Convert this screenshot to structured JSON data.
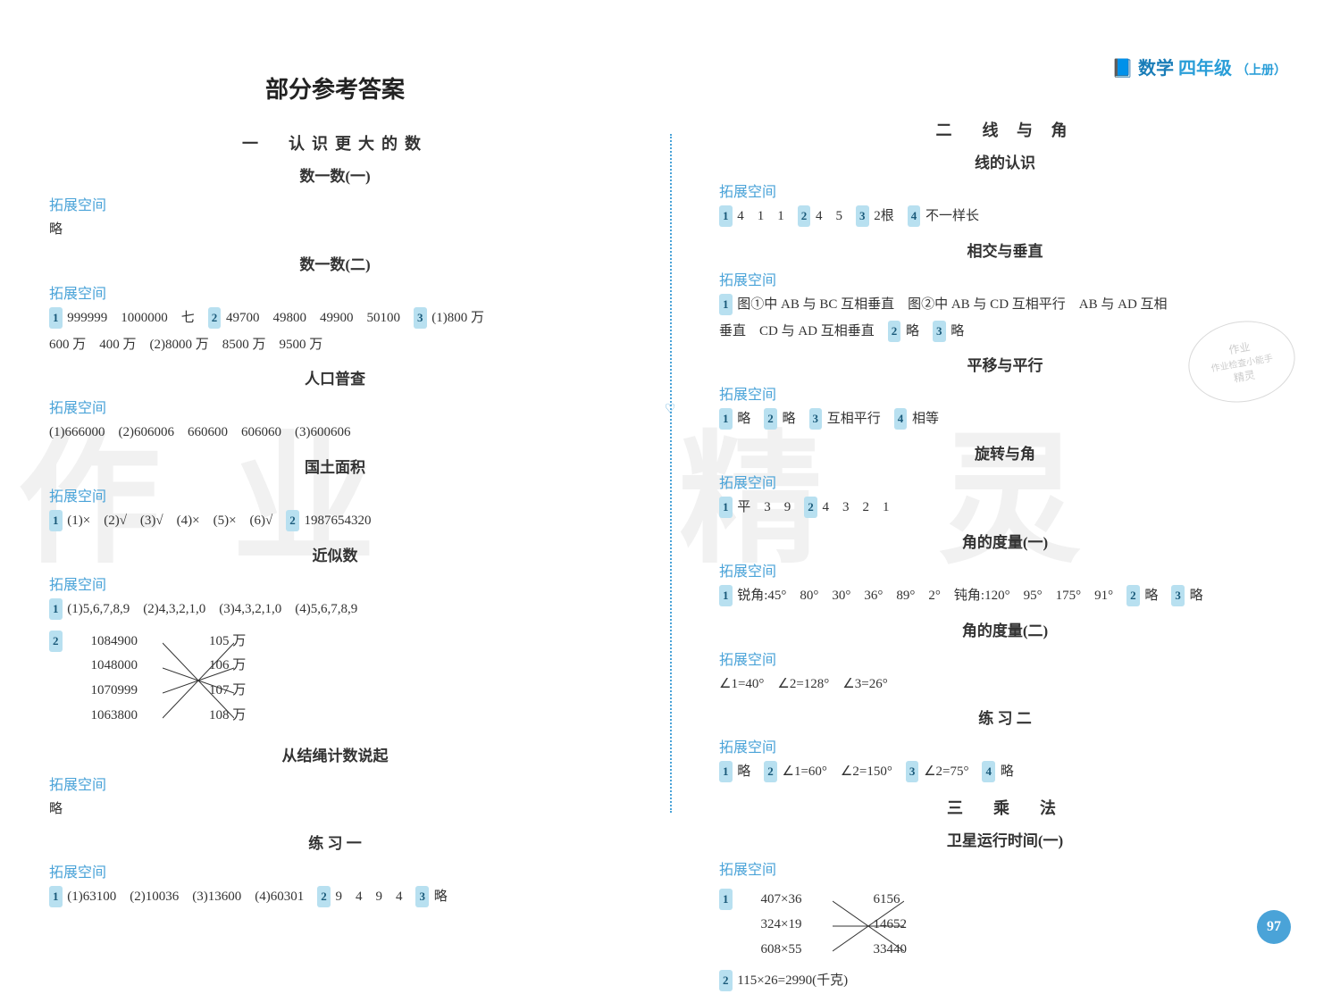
{
  "header": {
    "subject": "数学",
    "grade": "四年级",
    "volume": "（上册）"
  },
  "main_title": "部分参考答案",
  "left_page": {
    "chapter": "一　认识更大的数",
    "sections": [
      {
        "title": "数一数(一)",
        "label": "拓展空间",
        "content": "略"
      },
      {
        "title": "数一数(二)",
        "label": "拓展空间",
        "lines": [
          {
            "parts": [
              {
                "badge": "1"
              },
              {
                "t": " 999999　1000000　七　"
              },
              {
                "badge": "2"
              },
              {
                "t": " 49700　49800　49900　50100　"
              },
              {
                "badge": "3"
              },
              {
                "t": " (1)800 万"
              }
            ]
          },
          {
            "parts": [
              {
                "t": "600 万　400 万　(2)8000 万　8500 万　9500 万"
              }
            ]
          }
        ]
      },
      {
        "title": "人口普查",
        "label": "拓展空间",
        "lines": [
          {
            "parts": [
              {
                "t": "(1)666000　(2)606006　660600　606060　(3)600606"
              }
            ]
          }
        ]
      },
      {
        "title": "国土面积",
        "label": "拓展空间",
        "lines": [
          {
            "parts": [
              {
                "badge": "1"
              },
              {
                "t": " (1)×　(2)√　(3)√　(4)×　(5)×　(6)√　"
              },
              {
                "badge": "2"
              },
              {
                "t": " 1987654320"
              }
            ]
          }
        ]
      },
      {
        "title": "近似数",
        "label": "拓展空间",
        "lines": [
          {
            "parts": [
              {
                "badge": "1"
              },
              {
                "t": " (1)5,6,7,8,9　(2)4,3,2,1,0　(3)4,3,2,1,0　(4)5,6,7,8,9"
              }
            ]
          }
        ],
        "match": {
          "badge": "2",
          "left": [
            "1084900",
            "1048000",
            "1070999",
            "1063800"
          ],
          "right": [
            "105 万",
            "106 万",
            "107 万",
            "108 万"
          ]
        }
      },
      {
        "title": "从结绳计数说起",
        "label": "拓展空间",
        "content": "略"
      },
      {
        "title": "练 习 一",
        "label": "拓展空间",
        "lines": [
          {
            "parts": [
              {
                "badge": "1"
              },
              {
                "t": " (1)63100　(2)10036　(3)13600　(4)60301　"
              },
              {
                "badge": "2"
              },
              {
                "t": " 9　4　9　4　"
              },
              {
                "badge": "3"
              },
              {
                "t": " 略"
              }
            ]
          }
        ]
      }
    ]
  },
  "right_page": {
    "chapter": "二　线 与 角",
    "sections": [
      {
        "title": "线的认识",
        "label": "拓展空间",
        "lines": [
          {
            "parts": [
              {
                "badge": "1"
              },
              {
                "t": " 4　1　1　"
              },
              {
                "badge": "2"
              },
              {
                "t": " 4　5　"
              },
              {
                "badge": "3"
              },
              {
                "t": " 2根　"
              },
              {
                "badge": "4"
              },
              {
                "t": " 不一样长"
              }
            ]
          }
        ]
      },
      {
        "title": "相交与垂直",
        "label": "拓展空间",
        "lines": [
          {
            "parts": [
              {
                "badge": "1"
              },
              {
                "t": " 图①中 AB 与 BC 互相垂直　图②中 AB 与 CD 互相平行　AB 与 AD 互相"
              }
            ]
          },
          {
            "parts": [
              {
                "t": "垂直　CD 与 AD 互相垂直　"
              },
              {
                "badge": "2"
              },
              {
                "t": " 略　"
              },
              {
                "badge": "3"
              },
              {
                "t": " 略"
              }
            ]
          }
        ]
      },
      {
        "title": "平移与平行",
        "label": "拓展空间",
        "lines": [
          {
            "parts": [
              {
                "badge": "1"
              },
              {
                "t": " 略　"
              },
              {
                "badge": "2"
              },
              {
                "t": " 略　"
              },
              {
                "badge": "3"
              },
              {
                "t": " 互相平行　"
              },
              {
                "badge": "4"
              },
              {
                "t": " 相等"
              }
            ]
          }
        ]
      },
      {
        "title": "旋转与角",
        "label": "拓展空间",
        "lines": [
          {
            "parts": [
              {
                "badge": "1"
              },
              {
                "t": " 平　3　9　"
              },
              {
                "badge": "2"
              },
              {
                "t": " 4　3　2　1"
              }
            ]
          }
        ]
      },
      {
        "title": "角的度量(一)",
        "label": "拓展空间",
        "lines": [
          {
            "parts": [
              {
                "badge": "1"
              },
              {
                "t": " 锐角:45°　80°　30°　36°　89°　2°　钝角:120°　95°　175°　91°　"
              },
              {
                "badge": "2"
              },
              {
                "t": " 略　"
              },
              {
                "badge": "3"
              },
              {
                "t": " 略"
              }
            ]
          }
        ]
      },
      {
        "title": "角的度量(二)",
        "label": "拓展空间",
        "lines": [
          {
            "parts": [
              {
                "t": "∠1=40°　∠2=128°　∠3=26°"
              }
            ]
          }
        ]
      },
      {
        "title": "练 习 二",
        "label": "拓展空间",
        "lines": [
          {
            "parts": [
              {
                "badge": "1"
              },
              {
                "t": " 略　"
              },
              {
                "badge": "2"
              },
              {
                "t": " ∠1=60°　∠2=150°　"
              },
              {
                "badge": "3"
              },
              {
                "t": " ∠2=75°　"
              },
              {
                "badge": "4"
              },
              {
                "t": " 略"
              }
            ]
          }
        ]
      }
    ],
    "chapter2": "三　乘　法",
    "sections2": [
      {
        "title": "卫星运行时间(一)",
        "label": "拓展空间",
        "match": {
          "badge": "1",
          "left": [
            "407×36",
            "324×19",
            "608×55"
          ],
          "right": [
            "6156",
            "14652",
            "33440"
          ]
        },
        "lines": [
          {
            "parts": [
              {
                "badge": "2"
              },
              {
                "t": " 115×26=2990(千克)"
              }
            ]
          }
        ]
      }
    ]
  },
  "page_number": "97",
  "watermark": [
    "作",
    "业",
    "精",
    "灵"
  ],
  "stamp": {
    "line1": "作业",
    "line2": "作业检查小能手",
    "line3": "精灵"
  },
  "colors": {
    "accent": "#4aa3d8",
    "badge_bg": "#b8e0f0",
    "text": "#333333"
  }
}
